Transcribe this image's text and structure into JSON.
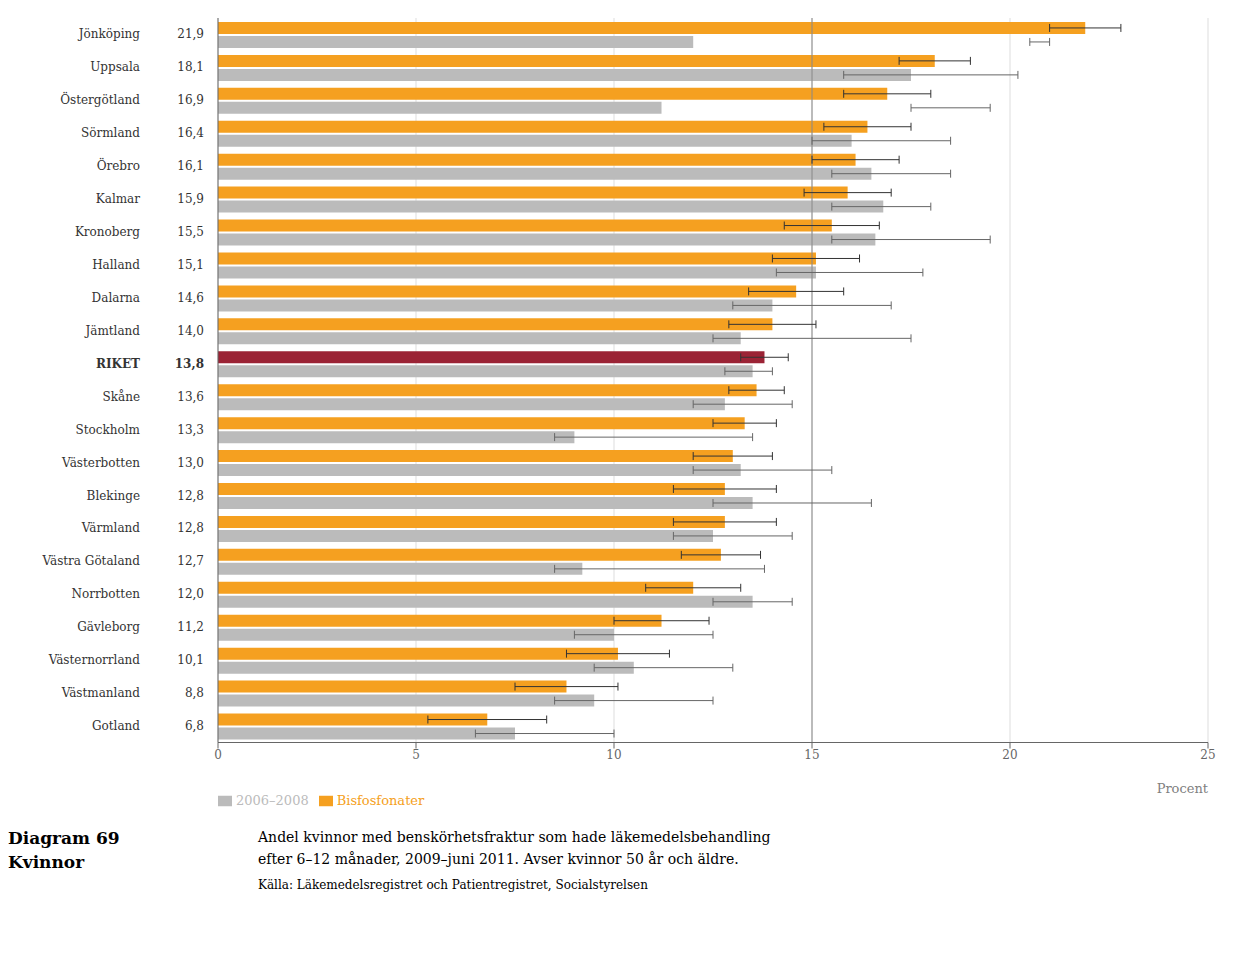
{
  "chart_data": {
    "type": "bar",
    "orientation": "horizontal",
    "title": "Diagram 69",
    "subtitle": "Kvinnor",
    "xlabel": "Procent",
    "annotations": [
      "Andel kvinnor med benskörhetsfraktur som hade läkemedelsbehandling",
      "efter 6–12 månader, 2009–juni 2011. Avser kvinnor 50 år och äldre.",
      "Källa: Läkemedelsregistret och Patientregistret, Socialstyrelsen"
    ],
    "categories": [
      "Jönköping",
      "Uppsala",
      "Östergötland",
      "Sörmland",
      "Örebro",
      "Kalmar",
      "Kronoberg",
      "Halland",
      "Dalarna",
      "Jämtland",
      "RIKET",
      "Skåne",
      "Stockholm",
      "Västerbotten",
      "Blekinge",
      "Värmland",
      "Västra Götaland",
      "Norrbotten",
      "Gävleborg",
      "Västernorrland",
      "Västmanland",
      "Gotland"
    ],
    "series": [
      {
        "name": "Bisfosfonater",
        "color": "#F5A020",
        "colors": [
          "#F5A020",
          "#F5A020",
          "#F5A020",
          "#F5A020",
          "#F5A020",
          "#F5A020",
          "#F5A020",
          "#F5A020",
          "#F5A020",
          "#F5A020",
          "#9B2335",
          "#F5A020",
          "#F5A020",
          "#F5A020",
          "#F5A020",
          "#F5A020",
          "#F5A020",
          "#F5A020",
          "#F5A020",
          "#F5A020",
          "#F5A020",
          "#F5A020"
        ],
        "values": [
          21.9,
          18.1,
          16.9,
          16.4,
          16.1,
          15.9,
          15.5,
          15.1,
          14.6,
          14.0,
          13.8,
          13.6,
          13.3,
          13.0,
          12.8,
          12.8,
          12.7,
          12.0,
          11.2,
          10.1,
          8.8,
          6.8
        ],
        "value_labels": [
          "21,9",
          "18,1",
          "16,9",
          "16,4",
          "16,1",
          "15,9",
          "15,5",
          "15,1",
          "14,6",
          "14,0",
          "13,8",
          "13,6",
          "13,3",
          "13,0",
          "12,8",
          "12,8",
          "12,7",
          "12,0",
          "11,2",
          "10,1",
          "8,8",
          "6,8"
        ],
        "ci_low": [
          21.0,
          17.2,
          15.8,
          15.3,
          15.0,
          14.8,
          14.3,
          14.0,
          13.4,
          12.9,
          13.2,
          12.9,
          12.5,
          12.0,
          11.5,
          11.5,
          11.7,
          10.8,
          10.0,
          8.8,
          7.5,
          5.3
        ],
        "ci_high": [
          22.8,
          19.0,
          18.0,
          17.5,
          17.2,
          17.0,
          16.7,
          16.2,
          15.8,
          15.1,
          14.4,
          14.3,
          14.1,
          14.0,
          14.1,
          14.1,
          13.7,
          13.2,
          12.4,
          11.4,
          10.1,
          8.3
        ]
      },
      {
        "name": "2006–2008",
        "color": "#BBBBBB",
        "values": [
          12.0,
          17.5,
          11.2,
          16.0,
          16.5,
          16.8,
          16.6,
          15.1,
          14.0,
          13.2,
          13.5,
          12.8,
          9.0,
          13.2,
          13.5,
          12.5,
          9.2,
          13.5,
          10.0,
          10.5,
          9.5,
          7.5
        ],
        "ci_low": [
          20.5,
          15.8,
          17.5,
          15.0,
          15.5,
          15.5,
          15.5,
          14.1,
          13.0,
          12.5,
          12.8,
          12.0,
          8.5,
          12.0,
          12.5,
          11.5,
          8.5,
          12.5,
          9.0,
          9.5,
          8.5,
          6.5
        ],
        "ci_high": [
          21.0,
          20.2,
          19.5,
          18.5,
          18.5,
          18.0,
          19.5,
          17.8,
          17.0,
          17.5,
          14.0,
          14.5,
          13.5,
          15.5,
          16.5,
          14.5,
          13.8,
          14.5,
          12.5,
          13.0,
          12.5,
          10.0
        ]
      }
    ],
    "xlim": [
      0,
      25
    ],
    "xticks": [
      0,
      5,
      10,
      15,
      20,
      25
    ],
    "reference_line": 15,
    "grid": true,
    "legend": "bottom",
    "data_labels": true
  }
}
